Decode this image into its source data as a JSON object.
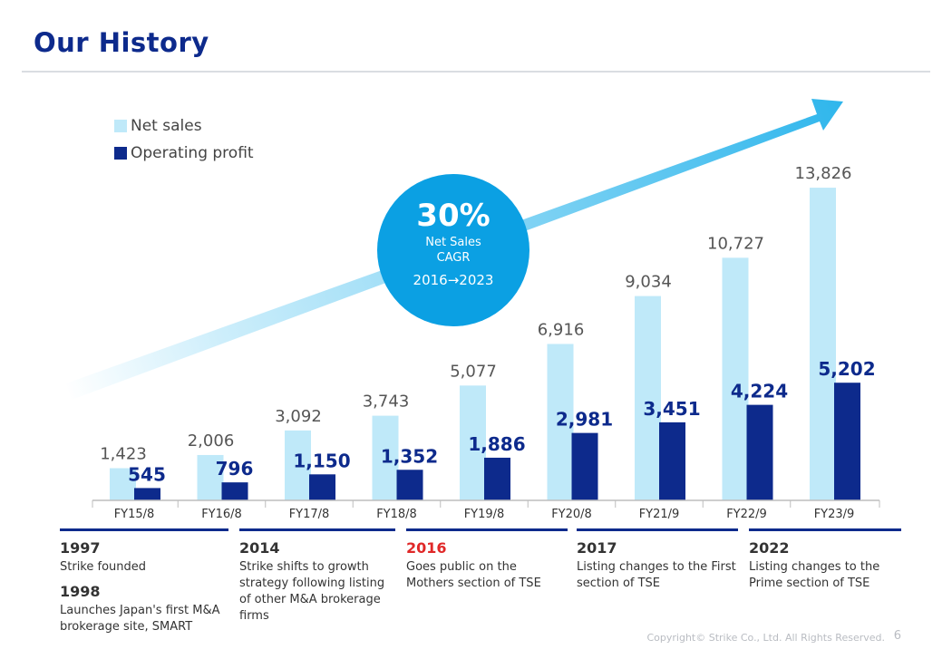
{
  "title": "Our History",
  "legend": {
    "net_sales": "Net sales",
    "operating_profit": "Operating profit"
  },
  "cagr": {
    "value": "30%",
    "label": "Net Sales\nCAGR",
    "period": "2016→2023"
  },
  "colors": {
    "net_sales": "#bfe9f9",
    "operating_profit": "#0d2a8c",
    "accent": "#0ba0e3",
    "title": "#0d2a8c",
    "highlight": "#e02828"
  },
  "chart_data": {
    "type": "bar",
    "categories": [
      "FY15/8",
      "FY16/8",
      "FY17/8",
      "FY18/8",
      "FY19/8",
      "FY20/8",
      "FY21/9",
      "FY22/9",
      "FY23/9"
    ],
    "series": [
      {
        "name": "Net sales",
        "values": [
          1423,
          2006,
          3092,
          3743,
          5077,
          6916,
          9034,
          10727,
          13826
        ]
      },
      {
        "name": "Operating profit",
        "values": [
          545,
          796,
          1150,
          1352,
          1886,
          2981,
          3451,
          4224,
          5202
        ]
      }
    ],
    "value_labels": {
      "net_sales": [
        "1,423",
        "2,006",
        "3,092",
        "3,743",
        "5,077",
        "6,916",
        "9,034",
        "10,727",
        "13,826"
      ],
      "operating_profit": [
        "545",
        "796",
        "1,150",
        "1,352",
        "1,886",
        "2,981",
        "3,451",
        "4,224",
        "5,202"
      ]
    },
    "ylim": [
      0,
      14000
    ],
    "grid": false,
    "legend_position": "top-left"
  },
  "milestones": [
    {
      "year": "1997",
      "text": "Strike founded",
      "year2": "1998",
      "text2": "Launches Japan's first M&A brokerage site, SMART"
    },
    {
      "year": "2014",
      "text": "Strike shifts to growth strategy following listing of other M&A brokerage firms"
    },
    {
      "year": "2016",
      "text": "Goes public on the Mothers section of TSE"
    },
    {
      "year": "2017",
      "text": "Listing changes to the First section of TSE"
    },
    {
      "year": "2022",
      "text": "Listing changes to the Prime section of TSE"
    }
  ],
  "footer": {
    "copyright": "Copyright© Strike Co., Ltd. All Rights Reserved.",
    "page": "6"
  }
}
